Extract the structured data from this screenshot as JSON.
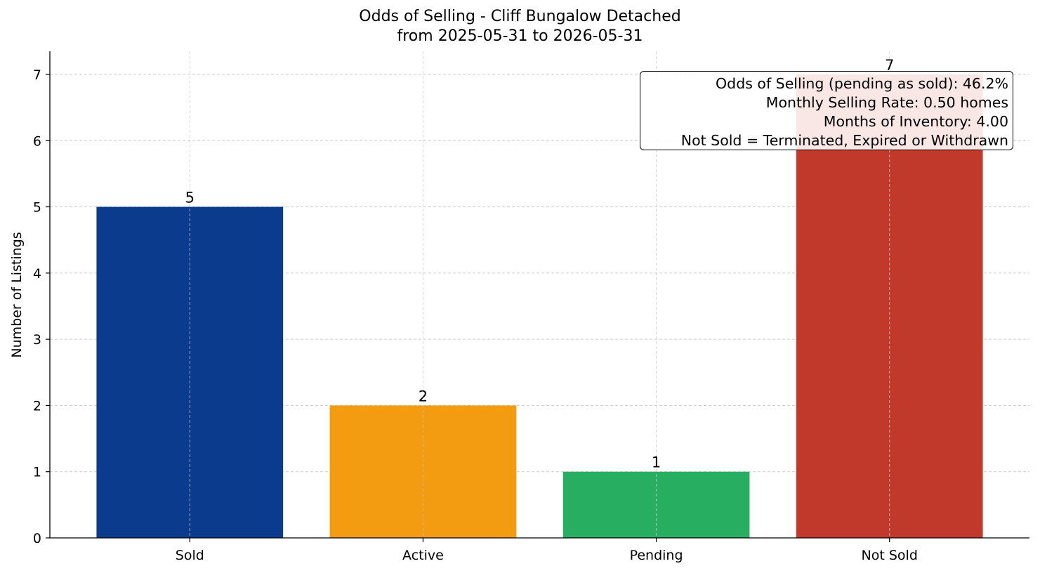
{
  "chart_data": {
    "type": "bar",
    "title": "Odds of Selling - Cliff Bungalow Detached",
    "subtitle": "from 2025-05-31 to 2026-05-31",
    "xlabel": "",
    "ylabel": "Number of Listings",
    "categories": [
      "Sold",
      "Active",
      "Pending",
      "Not Sold"
    ],
    "values": [
      5,
      2,
      1,
      7
    ],
    "colors": [
      "#0b3b8c",
      "#f39c12",
      "#27ae60",
      "#c0392b"
    ],
    "ylim": [
      0,
      7.35
    ],
    "yticks": [
      0,
      1,
      2,
      3,
      4,
      5,
      6,
      7
    ],
    "grid": true,
    "annotation": {
      "placement": "top-right",
      "lines": [
        "Odds of Selling (pending as sold): 46.2%",
        "Monthly Selling Rate: 0.50 homes",
        "Months of Inventory: 4.00",
        "Not Sold = Terminated, Expired or Withdrawn"
      ]
    }
  }
}
